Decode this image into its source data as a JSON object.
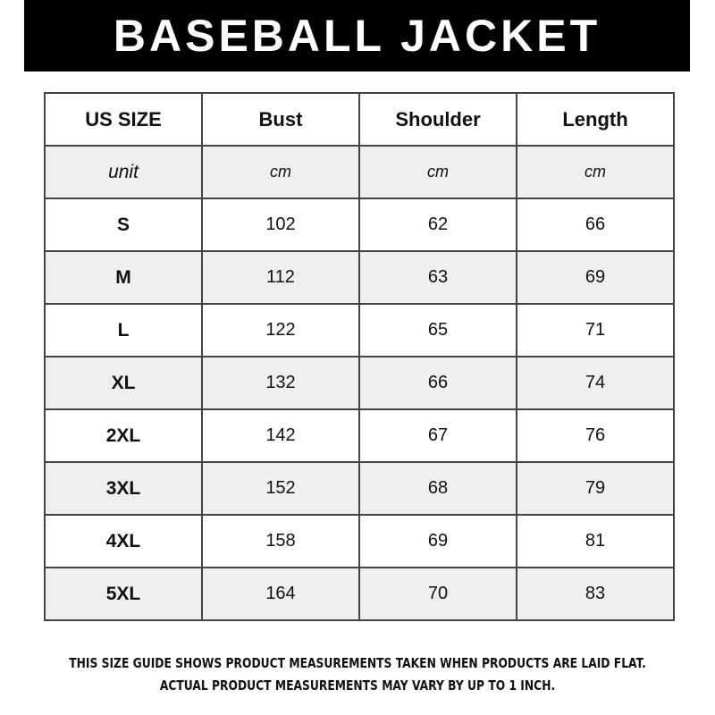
{
  "title": "BASEBALL JACKET",
  "headers": [
    "US SIZE",
    "Bust",
    "Shoulder",
    "Length"
  ],
  "units": [
    "unit",
    "cm",
    "cm",
    "cm"
  ],
  "rows": [
    [
      "S",
      "102",
      "62",
      "66"
    ],
    [
      "M",
      "112",
      "63",
      "69"
    ],
    [
      "L",
      "122",
      "65",
      "71"
    ],
    [
      "XL",
      "132",
      "66",
      "74"
    ],
    [
      "2XL",
      "142",
      "67",
      "76"
    ],
    [
      "3XL",
      "152",
      "68",
      "79"
    ],
    [
      "4XL",
      "158",
      "69",
      "81"
    ],
    [
      "5XL",
      "164",
      "70",
      "83"
    ]
  ],
  "notes": [
    "THIS SIZE GUIDE SHOWS PRODUCT MEASUREMENTS TAKEN WHEN PRODUCTS ARE LAID FLAT.",
    "ACTUAL PRODUCT MEASUREMENTS MAY VARY BY UP TO 1 INCH."
  ]
}
